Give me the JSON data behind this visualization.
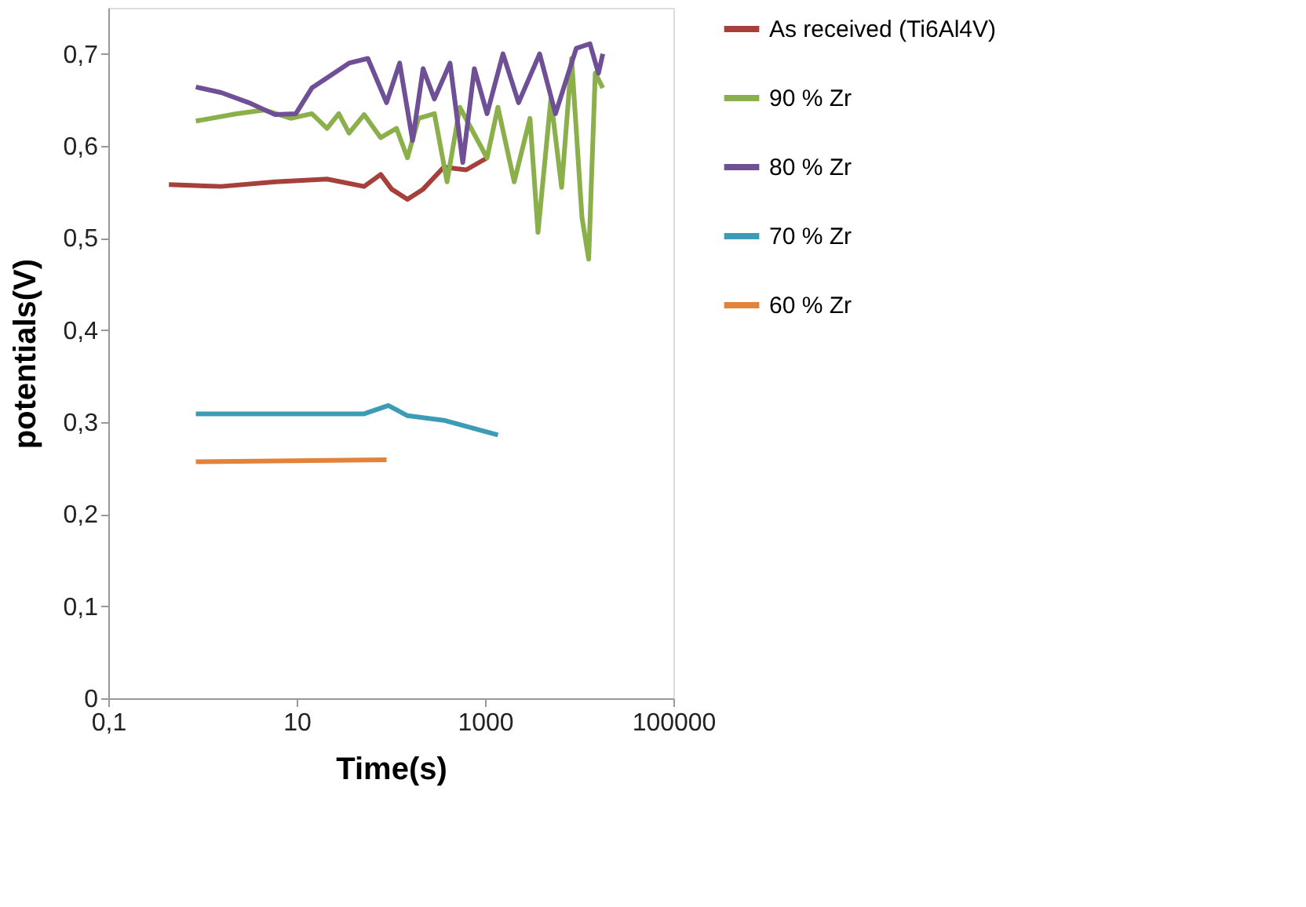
{
  "chart_data": {
    "type": "line",
    "xlabel": "Time(s)",
    "ylabel": "potentials(V)",
    "log": "x",
    "xlim": [
      0.1,
      100000
    ],
    "xticks": [
      {
        "value": 0.1,
        "label": "0,1"
      },
      10,
      1000,
      100000
    ],
    "ylim": [
      0,
      0.75
    ],
    "yticks": [
      0,
      {
        "value": 0.1,
        "label": "0,1"
      },
      {
        "value": 0.2,
        "label": "0,2"
      },
      {
        "value": 0.3,
        "label": "0,3"
      },
      {
        "value": 0.4,
        "label": "0,4"
      },
      {
        "value": 0.5,
        "label": "0,5"
      },
      {
        "value": 0.6,
        "label": "0,6"
      },
      {
        "value": 0.7,
        "label": "0,7"
      }
    ],
    "grid": false,
    "legend": "right",
    "marker": "none",
    "line_style": "solid",
    "series": [
      {
        "name": "As received (Ti6Al4V)",
        "color": "#a5403a",
        "x": [
          0.44,
          1.58,
          5.9,
          21,
          52,
          78,
          102,
          150,
          220,
          365,
          630,
          1050
        ],
        "values": [
          0.558,
          0.556,
          0.561,
          0.564,
          0.556,
          0.569,
          0.553,
          0.542,
          0.553,
          0.577,
          0.574,
          0.587
        ]
      },
      {
        "name": "90 % Zr",
        "color": "#8aaf4b",
        "x": [
          0.85,
          2.3,
          4.5,
          8.7,
          14.5,
          21,
          28,
          36,
          52,
          78,
          115,
          150,
          197,
          290,
          395,
          540,
          1050,
          1370,
          2040,
          3000,
          3650,
          5000,
          6500,
          8300,
          10700,
          12600,
          14800,
          17800
        ],
        "values": [
          0.627,
          0.635,
          0.639,
          0.63,
          0.635,
          0.619,
          0.635,
          0.614,
          0.634,
          0.609,
          0.619,
          0.587,
          0.63,
          0.635,
          0.561,
          0.642,
          0.587,
          0.642,
          0.561,
          0.63,
          0.506,
          0.651,
          0.555,
          0.695,
          0.522,
          0.477,
          0.679,
          0.663
        ]
      },
      {
        "name": "80 % Zr",
        "color": "#6f4f96",
        "x": [
          0.85,
          1.58,
          3.1,
          5.9,
          9.8,
          14.5,
          21,
          36,
          57,
          90,
          124,
          170,
          220,
          290,
          425,
          580,
          770,
          1050,
          1550,
          2270,
          3800,
          5600,
          9300,
          13000,
          16000,
          17800
        ],
        "values": [
          0.664,
          0.658,
          0.647,
          0.634,
          0.635,
          0.663,
          0.674,
          0.69,
          0.695,
          0.647,
          0.69,
          0.606,
          0.684,
          0.651,
          0.69,
          0.582,
          0.684,
          0.635,
          0.7,
          0.647,
          0.7,
          0.635,
          0.706,
          0.711,
          0.679,
          0.7
        ]
      },
      {
        "name": "70  % Zr",
        "color": "#3c9bb5",
        "x": [
          0.85,
          52,
          94,
          150,
          365,
          1370
        ],
        "values": [
          0.309,
          0.309,
          0.318,
          0.307,
          0.302,
          0.286
        ]
      },
      {
        "name": "60 % Zr",
        "color": "#e3823a",
        "x": [
          0.85,
          90
        ],
        "values": [
          0.257,
          0.259
        ]
      }
    ]
  }
}
